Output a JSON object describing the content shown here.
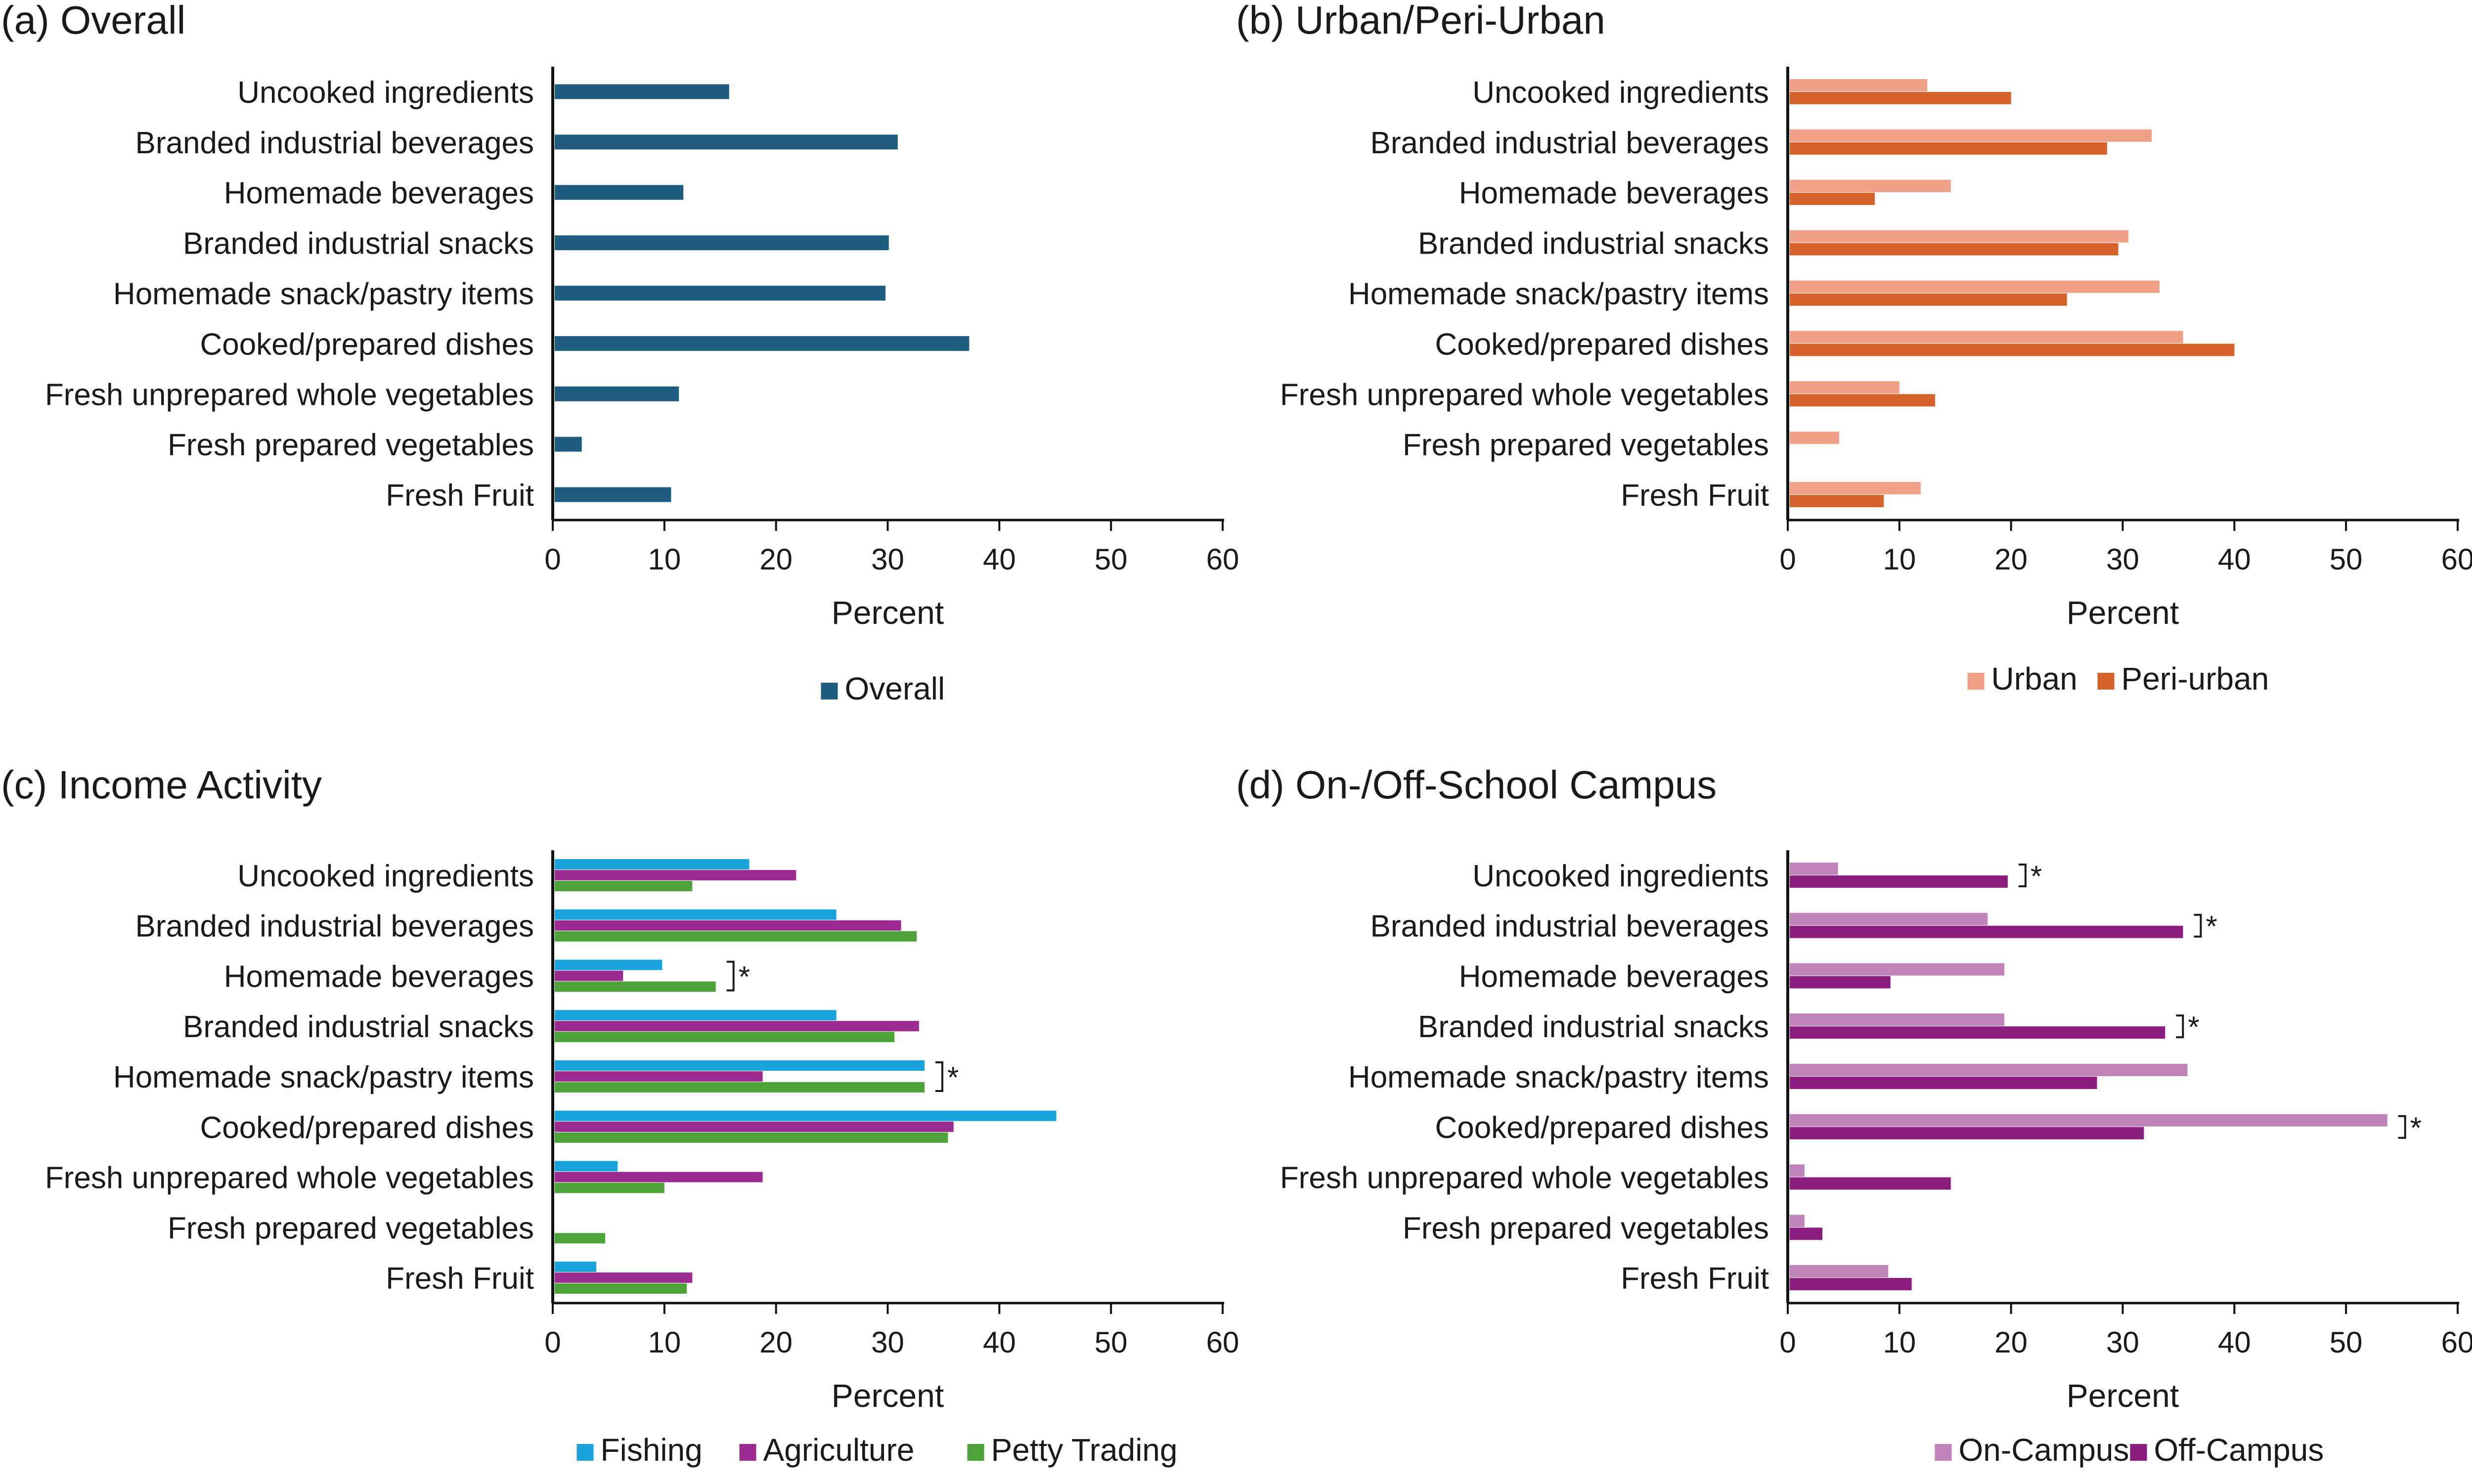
{
  "chart_data": [
    {
      "type": "bar",
      "orientation": "horizontal",
      "title": "(a) Overall",
      "xlabel": "Percent",
      "xlim": [
        0,
        60
      ],
      "xticks": [
        "0",
        "10",
        "20",
        "30",
        "40",
        "50",
        "60"
      ],
      "categories": [
        "Uncooked ingredients",
        "Branded industrial beverages",
        "Homemade beverages",
        "Branded industrial snacks",
        "Homemade snack/pastry items",
        "Cooked/prepared dishes",
        "Fresh unprepared whole vegetables",
        "Fresh prepared vegetables",
        "Fresh Fruit"
      ],
      "series": [
        {
          "name": "Overall",
          "color": "#1F5C80",
          "values": [
            15.8,
            30.9,
            11.7,
            30.1,
            29.8,
            37.3,
            11.3,
            2.6,
            10.6
          ]
        }
      ],
      "legend": "bottom-center",
      "significance": []
    },
    {
      "type": "bar",
      "orientation": "horizontal",
      "title": "(b) Urban/Peri-Urban",
      "xlabel": "Percent",
      "xlim": [
        0,
        60
      ],
      "xticks": [
        "0",
        "10",
        "20",
        "30",
        "40",
        "50",
        "60"
      ],
      "categories": [
        "Uncooked ingredients",
        "Branded industrial beverages",
        "Homemade beverages",
        "Branded industrial snacks",
        "Homemade snack/pastry items",
        "Cooked/prepared dishes",
        "Fresh unprepared whole vegetables",
        "Fresh prepared vegetables",
        "Fresh Fruit"
      ],
      "series": [
        {
          "name": "Urban",
          "color": "#EFA087",
          "values": [
            12.5,
            32.6,
            14.6,
            30.5,
            33.3,
            35.4,
            10.0,
            4.6,
            11.9
          ]
        },
        {
          "name": "Peri-urban",
          "color": "#D4622A",
          "values": [
            20.0,
            28.6,
            7.8,
            29.6,
            25.0,
            40.0,
            13.2,
            0,
            8.6
          ]
        }
      ],
      "legend": "bottom-center",
      "significance": []
    },
    {
      "type": "bar",
      "orientation": "horizontal",
      "title": "(c) Income Activity",
      "xlabel": "Percent",
      "xlim": [
        0,
        60
      ],
      "xticks": [
        "0",
        "10",
        "20",
        "30",
        "40",
        "50",
        "60"
      ],
      "categories": [
        "Uncooked ingredients",
        "Branded industrial beverages",
        "Homemade beverages",
        "Branded industrial snacks",
        "Homemade snack/pastry items",
        "Cooked/prepared dishes",
        "Fresh unprepared whole vegetables",
        "Fresh prepared vegetables",
        "Fresh Fruit"
      ],
      "series": [
        {
          "name": "Fishing",
          "color": "#1AA2DB",
          "values": [
            17.6,
            25.4,
            9.8,
            25.4,
            33.3,
            45.1,
            5.8,
            0,
            3.9
          ]
        },
        {
          "name": "Agriculture",
          "color": "#9B2B8E",
          "values": [
            21.8,
            31.2,
            6.3,
            32.8,
            18.8,
            35.9,
            18.8,
            0,
            12.5
          ]
        },
        {
          "name": "Petty Trading",
          "color": "#4DA339",
          "values": [
            12.5,
            32.6,
            14.6,
            30.6,
            33.3,
            35.4,
            10.0,
            4.7,
            12.0
          ]
        }
      ],
      "legend": "bottom-center",
      "significance": [
        {
          "category": "Homemade beverages",
          "marker": "*"
        },
        {
          "category": "Homemade snack/pastry items",
          "marker": "*"
        }
      ]
    },
    {
      "type": "bar",
      "orientation": "horizontal",
      "title": "(d) On-/Off-School Campus",
      "xlabel": "Percent",
      "xlim": [
        0,
        60
      ],
      "xticks": [
        "0",
        "10",
        "20",
        "30",
        "40",
        "50",
        "60"
      ],
      "categories": [
        "Uncooked ingredients",
        "Branded industrial beverages",
        "Homemade beverages",
        "Branded industrial snacks",
        "Homemade snack/pastry items",
        "Cooked/prepared dishes",
        "Fresh unprepared whole vegetables",
        "Fresh prepared vegetables",
        "Fresh Fruit"
      ],
      "series": [
        {
          "name": "On-Campus",
          "color": "#C083B8",
          "values": [
            4.5,
            17.9,
            19.4,
            19.4,
            35.8,
            53.7,
            1.5,
            1.5,
            9.0
          ]
        },
        {
          "name": "Off-Campus",
          "color": "#8B1D7E",
          "values": [
            19.7,
            35.4,
            9.2,
            33.8,
            27.7,
            31.9,
            14.6,
            3.1,
            11.1
          ]
        }
      ],
      "legend": "bottom-center",
      "significance": [
        {
          "category": "Uncooked ingredients",
          "marker": "*"
        },
        {
          "category": "Branded industrial beverages",
          "marker": "*"
        },
        {
          "category": "Branded industrial snacks",
          "marker": "*"
        },
        {
          "category": "Cooked/prepared dishes",
          "marker": "*"
        }
      ]
    }
  ]
}
